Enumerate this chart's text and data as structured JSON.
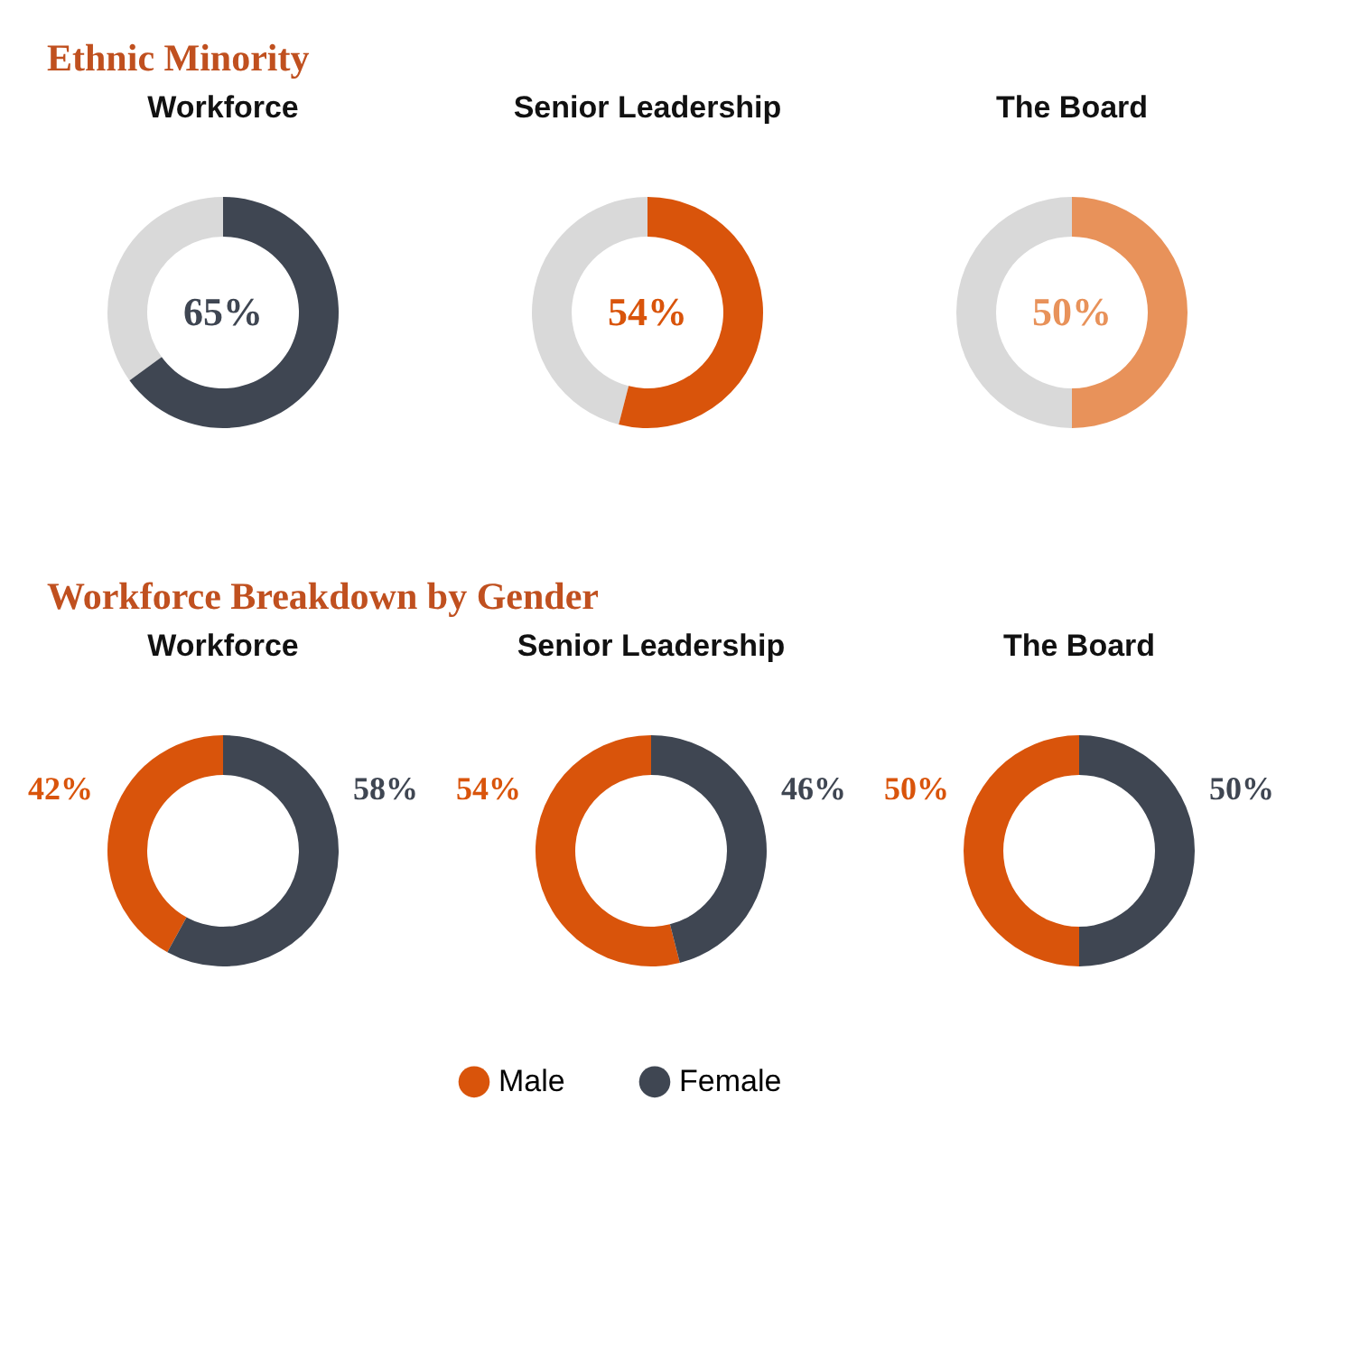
{
  "chart_data": [
    {
      "type": "other",
      "title": "Ethnic Minority"
    },
    {
      "type": "donut",
      "title": "Workforce",
      "categories": [
        null,
        null
      ],
      "values": [
        35,
        65
      ],
      "colors": [
        "#d9d9d9",
        "#3f4652"
      ],
      "value_labels": [
        null,
        "65%"
      ]
    },
    {
      "type": "donut",
      "title": "Senior Leadership",
      "categories": [
        null,
        null
      ],
      "values": [
        46,
        54
      ],
      "colors": [
        "#d9d9d9",
        "#d9540b"
      ],
      "value_labels": [
        null,
        "54%"
      ]
    },
    {
      "type": "donut",
      "title": "The Board",
      "categories": [
        null,
        null
      ],
      "values": [
        50,
        50
      ],
      "colors": [
        "#d9d9d9",
        "#e8925a"
      ],
      "value_labels": [
        null,
        "50%"
      ]
    },
    {
      "type": "other",
      "title": "Workforce Breakdown by Gender"
    },
    {
      "type": "donut",
      "title": "Workforce",
      "categories": [
        null,
        null
      ],
      "values": [
        42,
        58
      ],
      "colors": [
        "#d9540b",
        "#3f4652"
      ],
      "value_labels": [
        "42%",
        "58%"
      ]
    },
    {
      "type": "donut",
      "title": "Senior Leadership",
      "categories": [
        "Male",
        "Female"
      ],
      "values": [
        54,
        46
      ],
      "colors": [
        "#d9540b",
        "#3f4652"
      ],
      "value_labels": [
        "54%",
        "46%"
      ],
      "legend": "bottom"
    },
    {
      "type": "donut",
      "title": "The Board",
      "categories": [
        null,
        null
      ],
      "values": [
        50,
        50
      ],
      "colors": [
        "#d9540b",
        "#3f4652"
      ],
      "value_labels": [
        "50%",
        "50%"
      ]
    }
  ]
}
